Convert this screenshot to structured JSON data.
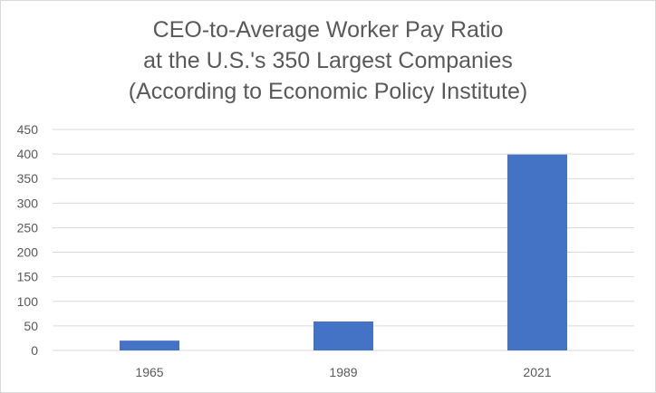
{
  "chart_data": {
    "type": "bar",
    "title_lines": [
      "CEO-to-Average Worker Pay Ratio",
      "at the U.S.'s 350 Largest Companies",
      "(According to Economic Policy Institute)"
    ],
    "categories": [
      "1965",
      "1989",
      "2021"
    ],
    "values": [
      20,
      59,
      399
    ],
    "xlabel": "",
    "ylabel": "",
    "ylim": [
      0,
      450
    ],
    "yticks": [
      0,
      50,
      100,
      150,
      200,
      250,
      300,
      350,
      400,
      450
    ],
    "grid": true,
    "legend": "none",
    "colors": {
      "bar": "#4472c4",
      "grid": "#d9d9d9",
      "text": "#595959"
    }
  }
}
